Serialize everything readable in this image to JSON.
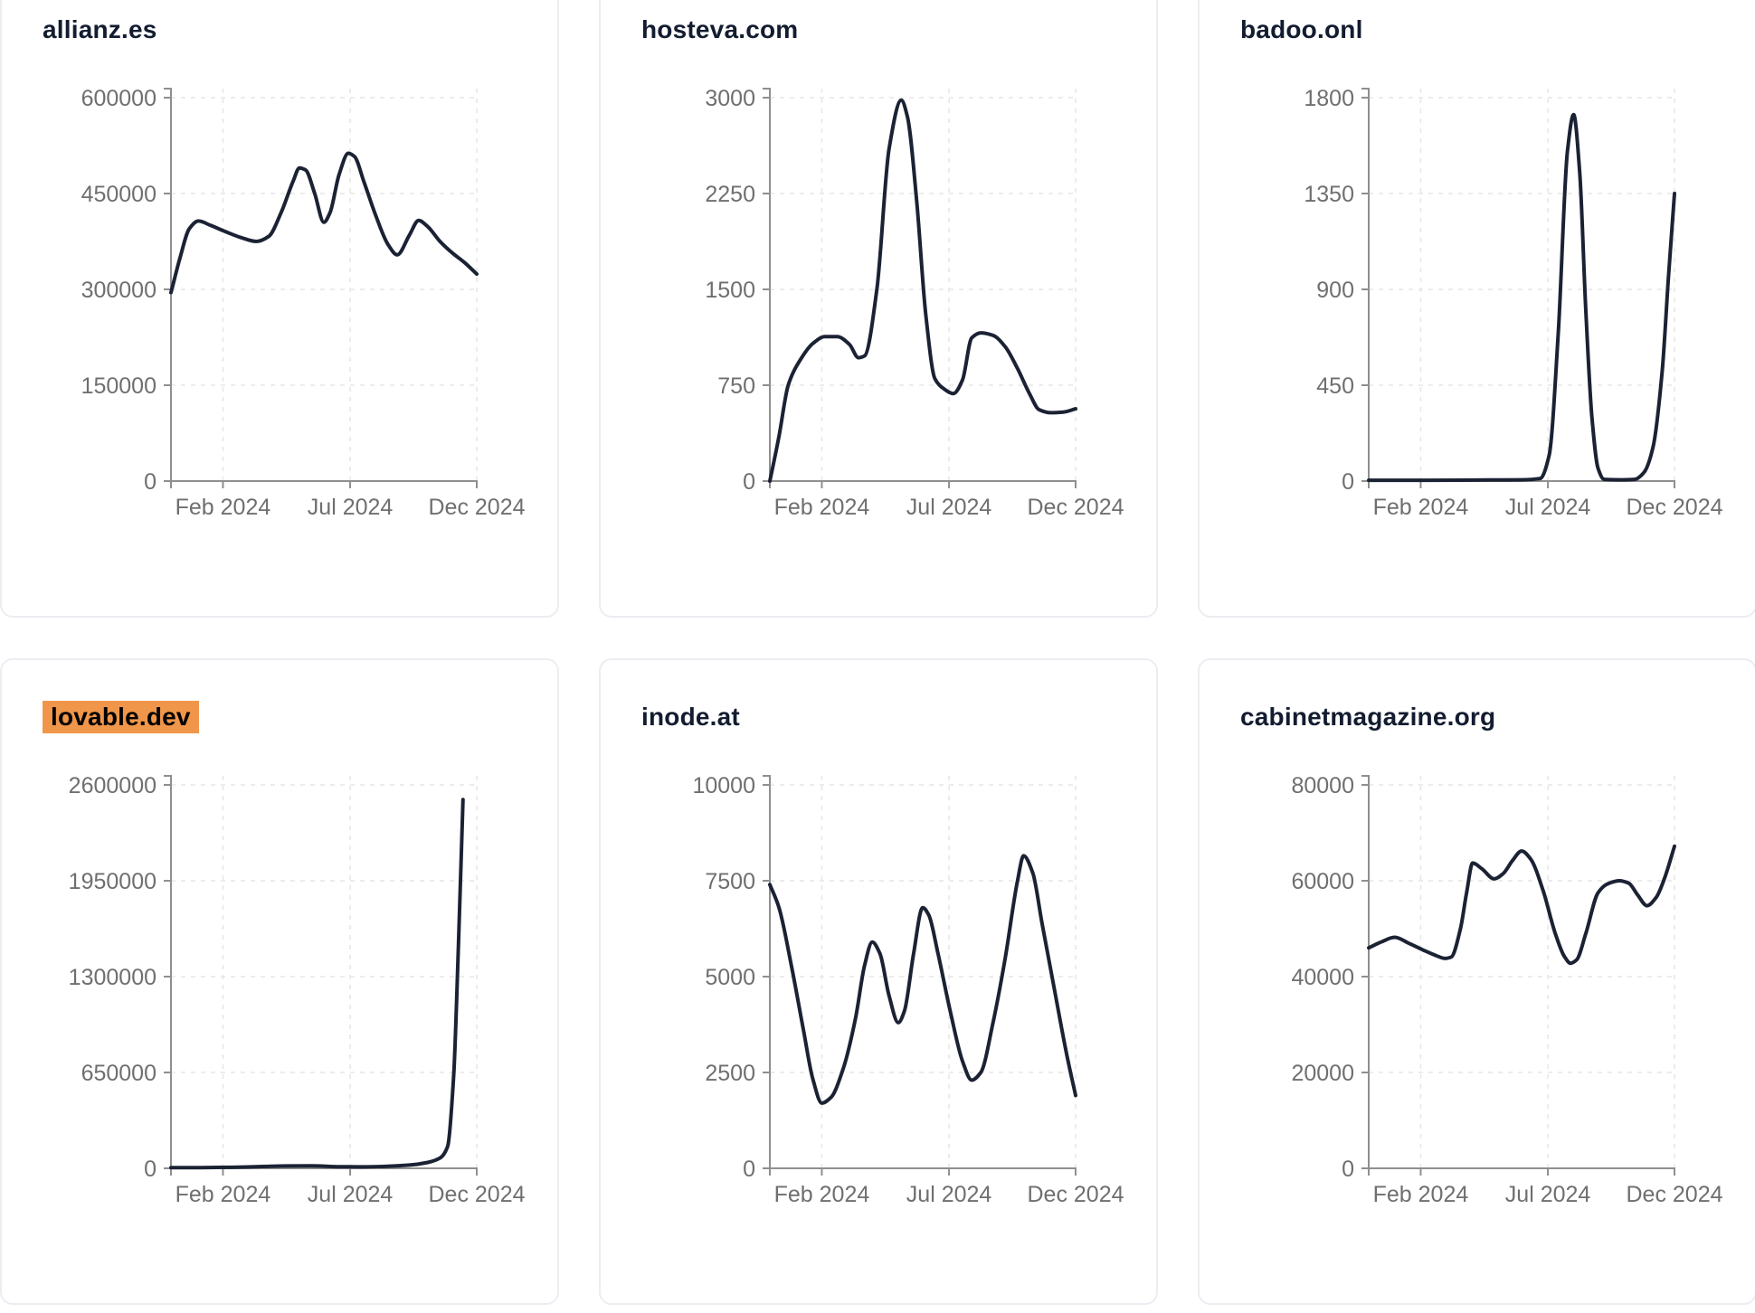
{
  "theme": {
    "page_background": "#ffffff",
    "card_background": "#ffffff",
    "card_border": "#ecedf2",
    "title_color": "#131c30",
    "highlight_background": "#f0964a",
    "highlight_text": "#000000",
    "line_color": "#1b2234",
    "axis_label_color": "#6f6f6f",
    "axis_line_color": "#8f8f8f",
    "gridline_color": "#e6e6e6"
  },
  "chart_data": [
    {
      "type": "line",
      "title": "allianz.es",
      "title_highlighted": false,
      "x_tick_labels": [
        "Feb 2024",
        "Jul 2024",
        "Dec 2024"
      ],
      "x_tick_positions": [
        0.17,
        0.586,
        1.0
      ],
      "ylim": [
        0,
        600000
      ],
      "y_ticks": [
        0,
        150000,
        300000,
        450000,
        600000
      ],
      "grid": "dashed",
      "legend": false,
      "points": [
        [
          0,
          295000
        ],
        [
          0.03,
          350000
        ],
        [
          0.06,
          395000
        ],
        [
          0.09,
          407000
        ],
        [
          0.13,
          400000
        ],
        [
          0.18,
          390000
        ],
        [
          0.23,
          381000
        ],
        [
          0.28,
          375000
        ],
        [
          0.32,
          383000
        ],
        [
          0.36,
          420000
        ],
        [
          0.4,
          470000
        ],
        [
          0.42,
          490000
        ],
        [
          0.44,
          487000
        ],
        [
          0.47,
          450000
        ],
        [
          0.5,
          405000
        ],
        [
          0.52,
          420000
        ],
        [
          0.55,
          480000
        ],
        [
          0.58,
          513000
        ],
        [
          0.6,
          508000
        ],
        [
          0.63,
          470000
        ],
        [
          0.67,
          415000
        ],
        [
          0.71,
          370000
        ],
        [
          0.74,
          354000
        ],
        [
          0.78,
          385000
        ],
        [
          0.81,
          408000
        ],
        [
          0.84,
          398000
        ],
        [
          0.88,
          375000
        ],
        [
          0.92,
          357000
        ],
        [
          0.96,
          342000
        ],
        [
          1.0,
          324000
        ]
      ]
    },
    {
      "type": "line",
      "title": "hosteva.com",
      "title_highlighted": false,
      "x_tick_labels": [
        "Feb 2024",
        "Jul 2024",
        "Dec 2024"
      ],
      "x_tick_positions": [
        0.17,
        0.586,
        1.0
      ],
      "ylim": [
        0,
        3000
      ],
      "y_ticks": [
        0,
        750,
        1500,
        2250,
        3000
      ],
      "grid": "dashed",
      "legend": false,
      "points": [
        [
          0,
          0
        ],
        [
          0.03,
          350
        ],
        [
          0.06,
          750
        ],
        [
          0.1,
          950
        ],
        [
          0.14,
          1075
        ],
        [
          0.18,
          1130
        ],
        [
          0.22,
          1130
        ],
        [
          0.26,
          1070
        ],
        [
          0.29,
          965
        ],
        [
          0.31,
          980
        ],
        [
          0.35,
          1500
        ],
        [
          0.39,
          2600
        ],
        [
          0.43,
          2980
        ],
        [
          0.45,
          2850
        ],
        [
          0.48,
          2200
        ],
        [
          0.51,
          1300
        ],
        [
          0.54,
          800
        ],
        [
          0.57,
          720
        ],
        [
          0.6,
          685
        ],
        [
          0.63,
          790
        ],
        [
          0.66,
          1120
        ],
        [
          0.69,
          1160
        ],
        [
          0.73,
          1140
        ],
        [
          0.77,
          1050
        ],
        [
          0.81,
          880
        ],
        [
          0.85,
          680
        ],
        [
          0.88,
          560
        ],
        [
          0.92,
          535
        ],
        [
          0.96,
          540
        ],
        [
          1.0,
          565
        ]
      ]
    },
    {
      "type": "line",
      "title": "badoo.onl",
      "title_highlighted": false,
      "x_tick_labels": [
        "Feb 2024",
        "Jul 2024",
        "Dec 2024"
      ],
      "x_tick_positions": [
        0.17,
        0.586,
        1.0
      ],
      "ylim": [
        0,
        1800
      ],
      "y_ticks": [
        0,
        450,
        900,
        1350,
        1800
      ],
      "grid": "dashed",
      "legend": false,
      "points": [
        [
          0,
          4
        ],
        [
          0.2,
          4
        ],
        [
          0.4,
          5
        ],
        [
          0.5,
          6
        ],
        [
          0.56,
          12
        ],
        [
          0.59,
          120
        ],
        [
          0.62,
          700
        ],
        [
          0.65,
          1550
        ],
        [
          0.67,
          1720
        ],
        [
          0.69,
          1450
        ],
        [
          0.71,
          800
        ],
        [
          0.73,
          300
        ],
        [
          0.75,
          60
        ],
        [
          0.77,
          8
        ],
        [
          0.82,
          6
        ],
        [
          0.87,
          8
        ],
        [
          0.9,
          40
        ],
        [
          0.93,
          160
        ],
        [
          0.96,
          520
        ],
        [
          0.98,
          950
        ],
        [
          1.0,
          1350
        ]
      ]
    },
    {
      "type": "line",
      "title": "lovable.dev",
      "title_highlighted": true,
      "x_tick_labels": [
        "Feb 2024",
        "Jul 2024",
        "Dec 2024"
      ],
      "x_tick_positions": [
        0.17,
        0.586,
        1.0
      ],
      "ylim": [
        0,
        2600000
      ],
      "y_ticks": [
        0,
        650000,
        1300000,
        1950000,
        2600000
      ],
      "grid": "dashed",
      "legend": false,
      "points": [
        [
          0,
          4000
        ],
        [
          0.1,
          5000
        ],
        [
          0.2,
          7000
        ],
        [
          0.3,
          12000
        ],
        [
          0.38,
          16000
        ],
        [
          0.46,
          17000
        ],
        [
          0.55,
          11000
        ],
        [
          0.62,
          10000
        ],
        [
          0.7,
          13000
        ],
        [
          0.78,
          22000
        ],
        [
          0.84,
          40000
        ],
        [
          0.88,
          70000
        ],
        [
          0.905,
          150000
        ],
        [
          0.925,
          650000
        ],
        [
          0.94,
          1500000
        ],
        [
          0.955,
          2500000
        ]
      ]
    },
    {
      "type": "line",
      "title": "inode.at",
      "title_highlighted": false,
      "x_tick_labels": [
        "Feb 2024",
        "Jul 2024",
        "Dec 2024"
      ],
      "x_tick_positions": [
        0.17,
        0.586,
        1.0
      ],
      "ylim": [
        0,
        10000
      ],
      "y_ticks": [
        0,
        2500,
        5000,
        7500,
        10000
      ],
      "grid": "dashed",
      "legend": false,
      "points": [
        [
          0,
          7400
        ],
        [
          0.03,
          6800
        ],
        [
          0.07,
          5300
        ],
        [
          0.11,
          3600
        ],
        [
          0.14,
          2350
        ],
        [
          0.17,
          1700
        ],
        [
          0.2,
          1850
        ],
        [
          0.24,
          2600
        ],
        [
          0.28,
          3900
        ],
        [
          0.31,
          5300
        ],
        [
          0.335,
          5900
        ],
        [
          0.36,
          5600
        ],
        [
          0.39,
          4500
        ],
        [
          0.42,
          3800
        ],
        [
          0.44,
          4100
        ],
        [
          0.47,
          5600
        ],
        [
          0.5,
          6800
        ],
        [
          0.52,
          6600
        ],
        [
          0.55,
          5600
        ],
        [
          0.59,
          4100
        ],
        [
          0.63,
          2800
        ],
        [
          0.66,
          2300
        ],
        [
          0.69,
          2500
        ],
        [
          0.73,
          3800
        ],
        [
          0.77,
          5500
        ],
        [
          0.81,
          7500
        ],
        [
          0.83,
          8150
        ],
        [
          0.86,
          7700
        ],
        [
          0.89,
          6400
        ],
        [
          0.93,
          4700
        ],
        [
          0.97,
          3000
        ],
        [
          1.0,
          1900
        ]
      ]
    },
    {
      "type": "line",
      "title": "cabinetmagazine.org",
      "title_highlighted": false,
      "x_tick_labels": [
        "Feb 2024",
        "Jul 2024",
        "Dec 2024"
      ],
      "x_tick_positions": [
        0.17,
        0.586,
        1.0
      ],
      "ylim": [
        0,
        80000
      ],
      "y_ticks": [
        0,
        20000,
        40000,
        60000,
        80000
      ],
      "grid": "dashed",
      "legend": false,
      "points": [
        [
          0,
          46000
        ],
        [
          0.04,
          47200
        ],
        [
          0.085,
          48200
        ],
        [
          0.13,
          47000
        ],
        [
          0.18,
          45500
        ],
        [
          0.22,
          44400
        ],
        [
          0.25,
          43800
        ],
        [
          0.27,
          44100
        ],
        [
          0.3,
          50000
        ],
        [
          0.32,
          57500
        ],
        [
          0.34,
          63700
        ],
        [
          0.37,
          62500
        ],
        [
          0.41,
          60400
        ],
        [
          0.44,
          61500
        ],
        [
          0.47,
          64200
        ],
        [
          0.5,
          66200
        ],
        [
          0.53,
          64500
        ],
        [
          0.57,
          58000
        ],
        [
          0.61,
          49000
        ],
        [
          0.64,
          44200
        ],
        [
          0.66,
          42800
        ],
        [
          0.68,
          43500
        ],
        [
          0.71,
          49000
        ],
        [
          0.75,
          57500
        ],
        [
          0.78,
          59300
        ],
        [
          0.82,
          60000
        ],
        [
          0.85,
          59500
        ],
        [
          0.88,
          57000
        ],
        [
          0.91,
          54800
        ],
        [
          0.94,
          56500
        ],
        [
          0.97,
          61000
        ],
        [
          1.0,
          67200
        ]
      ]
    }
  ]
}
